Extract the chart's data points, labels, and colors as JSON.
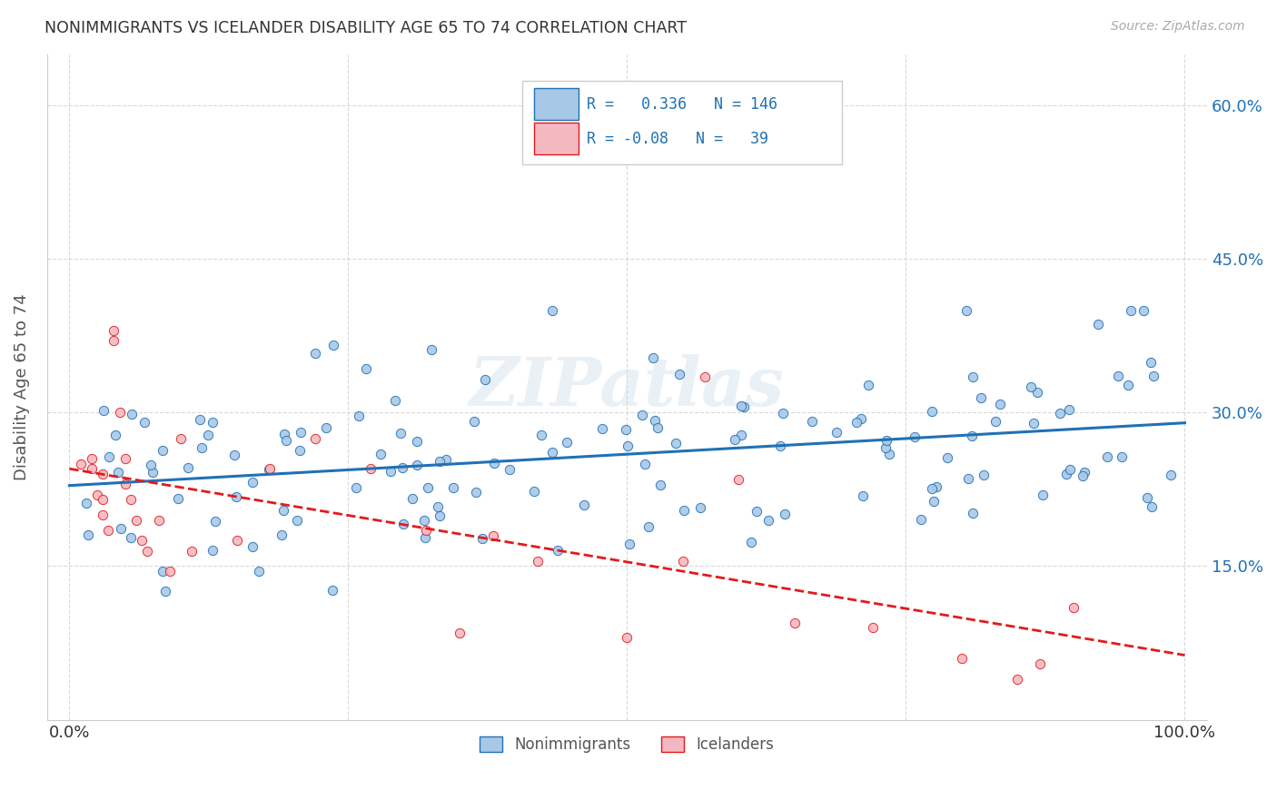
{
  "title": "NONIMMIGRANTS VS ICELANDER DISABILITY AGE 65 TO 74 CORRELATION CHART",
  "source": "Source: ZipAtlas.com",
  "ylabel": "Disability Age 65 to 74",
  "watermark": "ZIPatlas",
  "xmin": 0.0,
  "xmax": 1.0,
  "ymin": 0.0,
  "ymax": 0.65,
  "yticks": [
    0.15,
    0.3,
    0.45,
    0.6
  ],
  "ytick_labels": [
    "15.0%",
    "30.0%",
    "45.0%",
    "60.0%"
  ],
  "nonimmigrants_R": 0.336,
  "nonimmigrants_N": 146,
  "icelanders_R": -0.08,
  "icelanders_N": 39,
  "blue_line_color": "#2171b5",
  "pink_line_color": "#e31a1c",
  "blue_scatter_color": "#a8c8e8",
  "pink_scatter_color": "#f4b8c1",
  "background_color": "#ffffff",
  "grid_color": "#d0d0d0",
  "title_color": "#333333",
  "axis_label_color": "#555555",
  "legend_text_color": "#2171b5"
}
